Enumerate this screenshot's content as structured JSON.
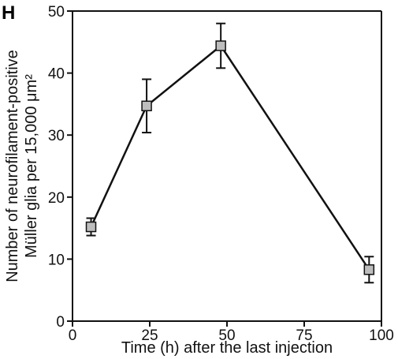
{
  "panel_label": "H",
  "colors": {
    "line": "#111111",
    "marker_fill": "#bdbdbd",
    "marker_stroke": "#111111",
    "axis": "#111111"
  },
  "chart_data": {
    "type": "line",
    "xlabel": "Time (h) after the last injection",
    "ylabel_line1": "Number of neurofilament-positive",
    "ylabel_line2": "Müller glia per 15,000 μm²",
    "xlim": [
      0,
      100
    ],
    "ylim": [
      0,
      50
    ],
    "x_ticks": [
      0,
      25,
      50,
      75,
      100
    ],
    "y_ticks": [
      0,
      10,
      20,
      30,
      40,
      50
    ],
    "x_tick_labels": [
      "0",
      "25",
      "50",
      "75",
      "100"
    ],
    "y_tick_labels": [
      "0",
      "10",
      "20",
      "30",
      "40",
      "50"
    ],
    "grid": false,
    "marker": "square",
    "series": [
      {
        "x": [
          6,
          24,
          48,
          96
        ],
        "y": [
          15.2,
          34.7,
          44.4,
          8.3
        ],
        "error": [
          1.4,
          4.3,
          3.6,
          2.1
        ]
      }
    ]
  }
}
